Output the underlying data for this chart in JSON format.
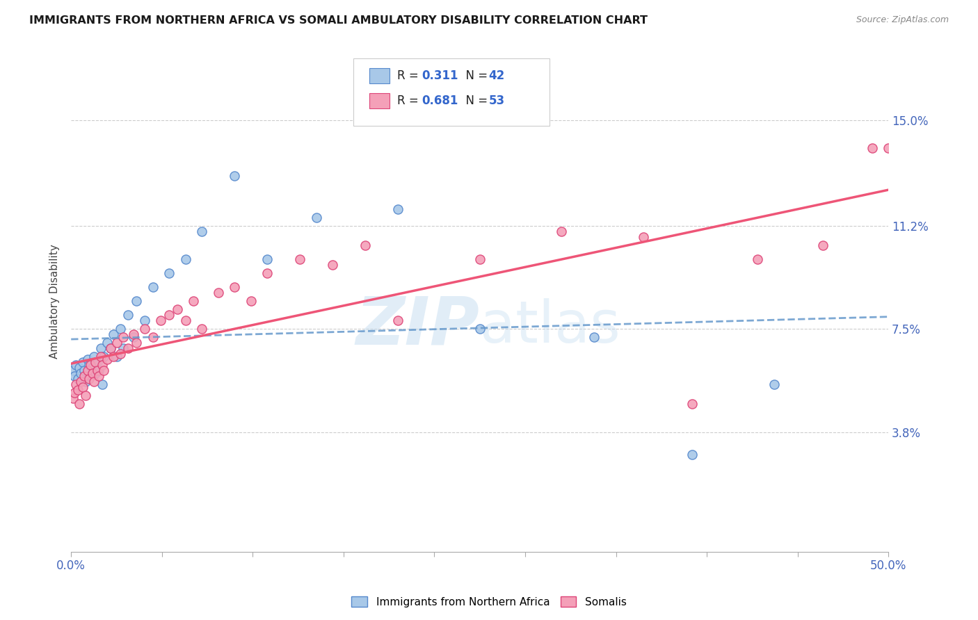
{
  "title": "IMMIGRANTS FROM NORTHERN AFRICA VS SOMALI AMBULATORY DISABILITY CORRELATION CHART",
  "source": "Source: ZipAtlas.com",
  "ylabel": "Ambulatory Disability",
  "yticks": [
    "3.8%",
    "7.5%",
    "11.2%",
    "15.0%"
  ],
  "ytick_vals": [
    0.038,
    0.075,
    0.112,
    0.15
  ],
  "xlim": [
    0.0,
    0.5
  ],
  "ylim": [
    -0.005,
    0.175
  ],
  "color_blue": "#a8c8e8",
  "color_pink": "#f4a0b8",
  "edge_blue": "#5588cc",
  "edge_pink": "#dd4477",
  "line_blue_color": "#6699cc",
  "line_pink_color": "#ee5577",
  "watermark_color": "#d0e8f8",
  "legend_label1": "Immigrants from Northern Africa",
  "legend_label2": "Somalis",
  "blue_scatter_x": [
    0.001,
    0.002,
    0.003,
    0.004,
    0.005,
    0.006,
    0.007,
    0.008,
    0.009,
    0.01,
    0.011,
    0.012,
    0.013,
    0.014,
    0.015,
    0.016,
    0.017,
    0.018,
    0.019,
    0.02,
    0.022,
    0.024,
    0.026,
    0.028,
    0.03,
    0.032,
    0.035,
    0.038,
    0.04,
    0.045,
    0.05,
    0.06,
    0.07,
    0.08,
    0.1,
    0.12,
    0.15,
    0.2,
    0.25,
    0.32,
    0.38,
    0.43
  ],
  "blue_scatter_y": [
    0.06,
    0.058,
    0.062,
    0.057,
    0.061,
    0.059,
    0.063,
    0.06,
    0.056,
    0.064,
    0.062,
    0.058,
    0.061,
    0.065,
    0.059,
    0.063,
    0.06,
    0.068,
    0.055,
    0.065,
    0.07,
    0.068,
    0.073,
    0.065,
    0.075,
    0.068,
    0.08,
    0.072,
    0.085,
    0.078,
    0.09,
    0.095,
    0.1,
    0.11,
    0.13,
    0.1,
    0.115,
    0.118,
    0.075,
    0.072,
    0.03,
    0.055
  ],
  "pink_scatter_x": [
    0.001,
    0.002,
    0.003,
    0.004,
    0.005,
    0.006,
    0.007,
    0.008,
    0.009,
    0.01,
    0.011,
    0.012,
    0.013,
    0.014,
    0.015,
    0.016,
    0.017,
    0.018,
    0.019,
    0.02,
    0.022,
    0.024,
    0.026,
    0.028,
    0.03,
    0.032,
    0.035,
    0.038,
    0.04,
    0.045,
    0.05,
    0.055,
    0.06,
    0.065,
    0.07,
    0.075,
    0.08,
    0.09,
    0.1,
    0.11,
    0.12,
    0.14,
    0.16,
    0.18,
    0.2,
    0.25,
    0.3,
    0.35,
    0.38,
    0.42,
    0.46,
    0.49,
    0.5
  ],
  "pink_scatter_y": [
    0.05,
    0.052,
    0.055,
    0.053,
    0.048,
    0.056,
    0.054,
    0.058,
    0.051,
    0.06,
    0.057,
    0.062,
    0.059,
    0.056,
    0.063,
    0.06,
    0.058,
    0.065,
    0.062,
    0.06,
    0.064,
    0.068,
    0.065,
    0.07,
    0.066,
    0.072,
    0.068,
    0.073,
    0.07,
    0.075,
    0.072,
    0.078,
    0.08,
    0.082,
    0.078,
    0.085,
    0.075,
    0.088,
    0.09,
    0.085,
    0.095,
    0.1,
    0.098,
    0.105,
    0.078,
    0.1,
    0.11,
    0.108,
    0.048,
    0.1,
    0.105,
    0.14,
    0.14
  ]
}
